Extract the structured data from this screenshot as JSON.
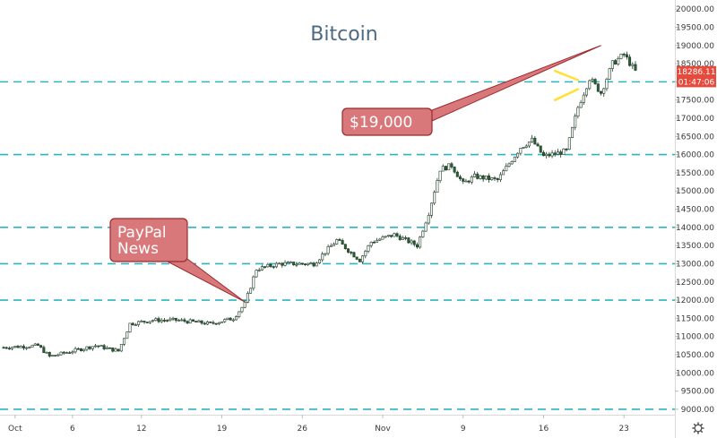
{
  "chart_data": {
    "type": "candlestick",
    "title": "Bitcoin",
    "ylim": [
      8850,
      20250
    ],
    "y_ticks": [
      9000,
      9500,
      10000,
      10500,
      11000,
      11500,
      12000,
      12500,
      13000,
      13500,
      14000,
      14500,
      15000,
      15500,
      16000,
      16500,
      17000,
      17500,
      18000,
      18500,
      19000,
      19500,
      20000
    ],
    "y_tick_labels": [
      "9000.00",
      "9500.00",
      "10000.00",
      "10500.00",
      "11000.00",
      "11500.00",
      "12000.00",
      "12500.00",
      "13000.00",
      "13500.00",
      "14000.00",
      "14500.00",
      "15000.00",
      "15500.00",
      "16000.00",
      "16500.00",
      "17000.00",
      "17500.00",
      "18000.00",
      "18500.00",
      "19000.00",
      "19500.00",
      "20000.00"
    ],
    "x_range_days": [
      "2020-09-30",
      "2020-11-24"
    ],
    "x_ticks": [
      {
        "date": "2020-10-01",
        "label": "Oct"
      },
      {
        "date": "2020-10-06",
        "label": "6"
      },
      {
        "date": "2020-10-12",
        "label": "12"
      },
      {
        "date": "2020-10-19",
        "label": "19"
      },
      {
        "date": "2020-10-26",
        "label": "26"
      },
      {
        "date": "2020-11-02",
        "label": "Nov"
      },
      {
        "date": "2020-11-09",
        "label": "9"
      },
      {
        "date": "2020-11-16",
        "label": "16"
      },
      {
        "date": "2020-11-23",
        "label": "23"
      }
    ],
    "horizontal_lines": [
      9000,
      12000,
      13000,
      14000,
      16000,
      18000
    ],
    "candle_anchors": [
      {
        "date": "2020-09-30",
        "price": 10700
      },
      {
        "date": "2020-10-03",
        "price": 10750
      },
      {
        "date": "2020-10-04",
        "price": 10450
      },
      {
        "date": "2020-10-08",
        "price": 10750
      },
      {
        "date": "2020-10-10",
        "price": 10600
      },
      {
        "date": "2020-10-11",
        "price": 11350
      },
      {
        "date": "2020-10-13",
        "price": 11450
      },
      {
        "date": "2020-10-15",
        "price": 11450
      },
      {
        "date": "2020-10-18",
        "price": 11350
      },
      {
        "date": "2020-10-20",
        "price": 11500
      },
      {
        "date": "2020-10-21",
        "price": 11900
      },
      {
        "date": "2020-10-22",
        "price": 12850
      },
      {
        "date": "2020-10-24",
        "price": 13000
      },
      {
        "date": "2020-10-27",
        "price": 13000
      },
      {
        "date": "2020-10-29",
        "price": 13650
      },
      {
        "date": "2020-10-31",
        "price": 13100
      },
      {
        "date": "2020-11-01",
        "price": 13600
      },
      {
        "date": "2020-11-03",
        "price": 13800
      },
      {
        "date": "2020-11-05",
        "price": 13500
      },
      {
        "date": "2020-11-06",
        "price": 14400
      },
      {
        "date": "2020-11-07",
        "price": 15600
      },
      {
        "date": "2020-11-08",
        "price": 15700
      },
      {
        "date": "2020-11-09",
        "price": 15200
      },
      {
        "date": "2020-11-10",
        "price": 15400
      },
      {
        "date": "2020-11-12",
        "price": 15300
      },
      {
        "date": "2020-11-14",
        "price": 16200
      },
      {
        "date": "2020-11-15",
        "price": 16400
      },
      {
        "date": "2020-11-16",
        "price": 15950
      },
      {
        "date": "2020-11-18",
        "price": 16100
      },
      {
        "date": "2020-11-19",
        "price": 17300
      },
      {
        "date": "2020-11-20",
        "price": 18100
      },
      {
        "date": "2020-11-21",
        "price": 17700
      },
      {
        "date": "2020-11-22",
        "price": 18500
      },
      {
        "date": "2020-11-23",
        "price": 18750
      },
      {
        "date": "2020-11-24",
        "price": 18286
      }
    ],
    "annotations": [
      {
        "label": "PayPal News",
        "text_lines": [
          "PayPal",
          "News"
        ],
        "points_to": {
          "date": "2020-10-21",
          "price": 11950
        }
      },
      {
        "label": "$19,000",
        "text_lines": [
          "$19,000"
        ],
        "points_to": {
          "date": "2020-11-21",
          "price": 19000
        }
      }
    ],
    "pattern_lines": [
      [
        {
          "date": "2020-11-17",
          "price": 18300
        },
        {
          "date": "2020-11-19",
          "price": 18050
        }
      ],
      [
        {
          "date": "2020-11-17",
          "price": 17500
        },
        {
          "date": "2020-11-19",
          "price": 17800
        }
      ]
    ],
    "last_price_label": "18286.11",
    "countdown_label": "01:47:06",
    "last_price_value": 18286.11,
    "countdown_value": 18000
  },
  "colors": {
    "up": "#26a69a",
    "down": "#ef5350",
    "candle_body": "#2b5f35",
    "hline": "#2db3c6",
    "callout_fill": "#d9787a",
    "callout_stroke": "#9c2a2e",
    "pattern": "#ffe033",
    "title": "#4e6a82",
    "axis_text": "#3a3a3a",
    "price_badge": "#e64a3c"
  },
  "icons": {
    "settings": "gear-icon"
  }
}
